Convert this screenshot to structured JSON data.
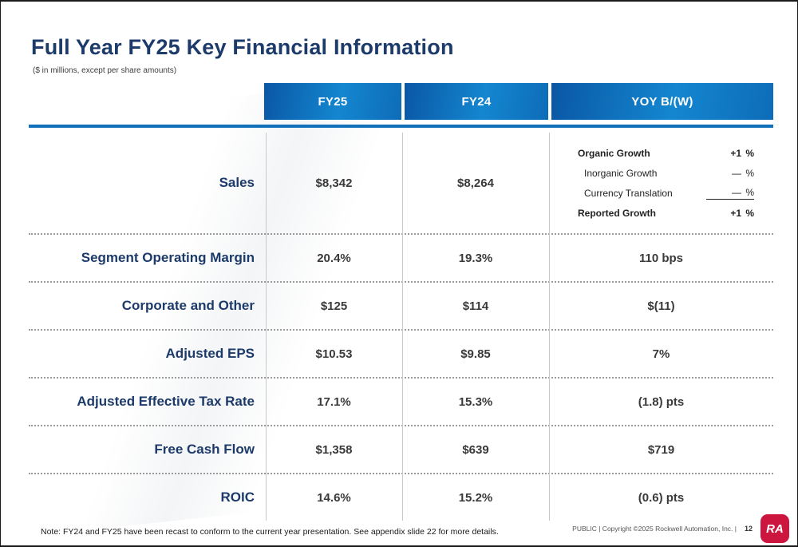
{
  "slide": {
    "title": "Full Year FY25 Key Financial Information",
    "subtitle": "($ in millions, except per share amounts)",
    "note": "Note: FY24 and FY25 have been recast to conform to the current year presentation. See appendix slide 22 for more details.",
    "footer": "PUBLIC | Copyright ©2025 Rockwell Automation, Inc. |",
    "page_number": "12",
    "logo_text": "RA"
  },
  "table": {
    "columns": [
      "FY25",
      "FY24",
      "YOY B/(W)"
    ],
    "sales": {
      "label": "Sales",
      "fy25": "$8,342",
      "fy24": "$8,264",
      "breakdown": [
        {
          "label": "Organic Growth",
          "value": "+1",
          "unit": "%"
        },
        {
          "label": "Inorganic Growth",
          "value": "—",
          "unit": "%"
        },
        {
          "label": "Currency Translation",
          "value": "—",
          "unit": "%"
        },
        {
          "label": "Reported Growth",
          "value": "+1",
          "unit": "%"
        }
      ]
    },
    "rows": [
      {
        "label": "Segment Operating Margin",
        "fy25": "20.4%",
        "fy24": "19.3%",
        "yoy": "110 bps"
      },
      {
        "label": "Corporate and Other",
        "fy25": "$125",
        "fy24": "$114",
        "yoy": "$(11)"
      },
      {
        "label": "Adjusted EPS",
        "fy25": "$10.53",
        "fy24": "$9.85",
        "yoy": "7%"
      },
      {
        "label": "Adjusted Effective Tax Rate",
        "fy25": "17.1%",
        "fy24": "15.3%",
        "yoy": "(1.8) pts"
      },
      {
        "label": "Free Cash Flow",
        "fy25": "$1,358",
        "fy24": "$639",
        "yoy": "$719"
      },
      {
        "label": "ROIC",
        "fy25": "14.6%",
        "fy24": "15.2%",
        "yoy": "(0.6) pts"
      }
    ]
  },
  "colors": {
    "title_blue": "#1c3a6a",
    "header_gradient_start": "#0a57a4",
    "header_gradient_end": "#1486d0",
    "rule_blue": "#1170ba",
    "logo_red": "#cd163f"
  }
}
